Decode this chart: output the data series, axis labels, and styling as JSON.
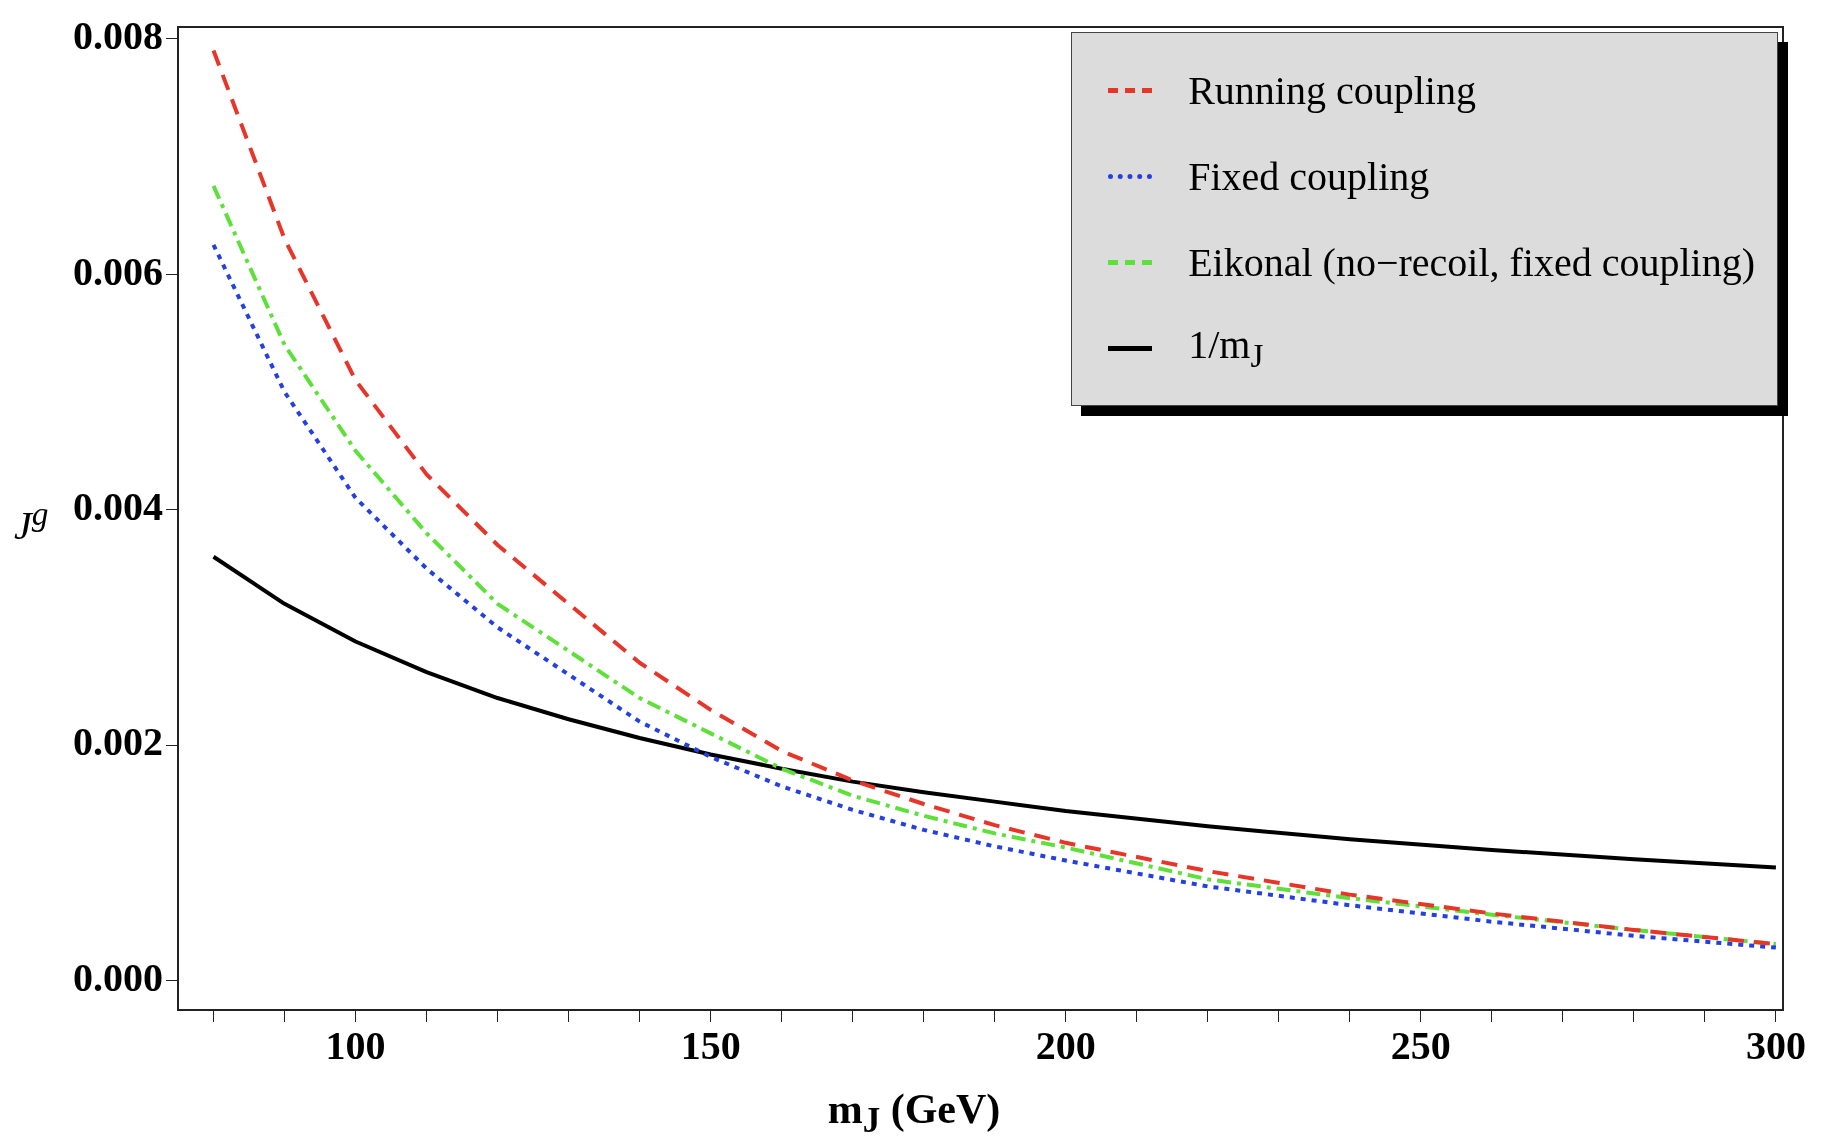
{
  "chart_data": {
    "type": "line",
    "xlabel": "m$_{J}$ (GeV)",
    "ylabel": "J$^{g}$",
    "x": [
      80,
      90,
      100,
      110,
      120,
      130,
      140,
      150,
      160,
      170,
      180,
      190,
      200,
      220,
      240,
      260,
      280,
      300
    ],
    "series": [
      {
        "name": "Running coupling",
        "color": "#e8352a",
        "line_style": "dashed",
        "values": [
          0.0079,
          0.0063,
          0.0051,
          0.0043,
          0.0037,
          0.0032,
          0.0027,
          0.0023,
          0.00195,
          0.0017,
          0.0015,
          0.00132,
          0.00117,
          0.00093,
          0.00073,
          0.00057,
          0.00043,
          0.00031
        ]
      },
      {
        "name": "Fixed coupling",
        "color": "#2440e0",
        "line_style": "dotted",
        "values": [
          0.00625,
          0.005,
          0.0041,
          0.0035,
          0.003,
          0.0026,
          0.0022,
          0.0019,
          0.00165,
          0.00145,
          0.00128,
          0.00114,
          0.00102,
          0.0008,
          0.00064,
          0.0005,
          0.00038,
          0.00028
        ]
      },
      {
        "name": "Eikonal (no−recoil, fixed coupling)",
        "color": "#5ee03a",
        "line_style": "dashdot",
        "values": [
          0.00675,
          0.0054,
          0.0045,
          0.0038,
          0.0032,
          0.0028,
          0.0024,
          0.0021,
          0.0018,
          0.00157,
          0.0014,
          0.00125,
          0.00113,
          0.00086,
          0.0007,
          0.00056,
          0.00043,
          0.00031
        ]
      },
      {
        "name": "1/m$_{J}$",
        "color": "#000000",
        "line_style": "solid",
        "values": [
          0.0036,
          0.0032,
          0.00288,
          0.00262,
          0.0024,
          0.00222,
          0.00206,
          0.00192,
          0.0018,
          0.00169,
          0.0016,
          0.00152,
          0.00144,
          0.00131,
          0.0012,
          0.00111,
          0.00103,
          0.00096
        ]
      }
    ],
    "xlim": [
      75,
      301
    ],
    "ylim": [
      -0.00025,
      0.0081
    ],
    "xticks": [
      {
        "value": 80,
        "label": null
      },
      {
        "value": 90,
        "label": null
      },
      100,
      {
        "value": 110,
        "label": null
      },
      {
        "value": 120,
        "label": null
      },
      {
        "value": 130,
        "label": null
      },
      {
        "value": 140,
        "label": null
      },
      150,
      {
        "value": 160,
        "label": null
      },
      {
        "value": 170,
        "label": null
      },
      {
        "value": 180,
        "label": null
      },
      {
        "value": 190,
        "label": null
      },
      200,
      {
        "value": 210,
        "label": null
      },
      {
        "value": 220,
        "label": null
      },
      {
        "value": 230,
        "label": null
      },
      {
        "value": 240,
        "label": null
      },
      250,
      {
        "value": 260,
        "label": null
      },
      {
        "value": 270,
        "label": null
      },
      {
        "value": 280,
        "label": null
      },
      {
        "value": 290,
        "label": null
      },
      300
    ],
    "yticks": [
      {
        "value": 0,
        "label": "0.000"
      },
      {
        "value": 0.002,
        "label": "0.002"
      },
      {
        "value": 0.004,
        "label": "0.004"
      },
      {
        "value": 0.006,
        "label": "0.006"
      },
      {
        "value": 0.008,
        "label": "0.008"
      }
    ],
    "grid": false,
    "legend": "top right",
    "marker": "none"
  }
}
